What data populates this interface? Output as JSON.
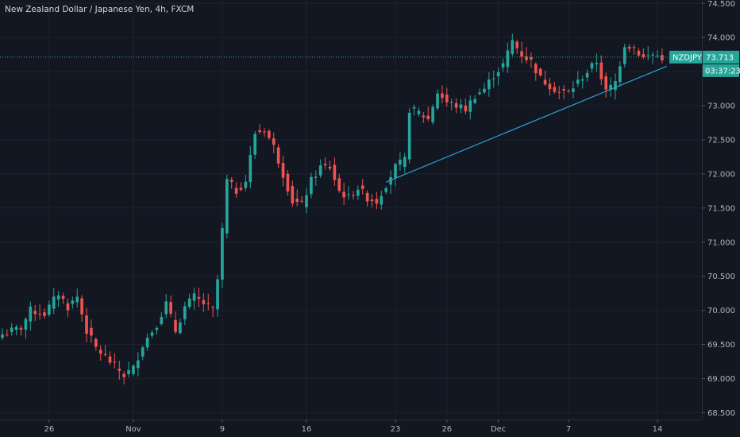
{
  "window": {
    "title": "New Zealand Dollar / Japanese Yen, 4h, FXCM"
  },
  "price_tag": {
    "symbol": "NZDJPY",
    "price": "73.713",
    "countdown": "03:37:23"
  },
  "colors": {
    "background": "#131722",
    "up": "#26a69a",
    "down": "#ef5350",
    "grid": "#1e222d",
    "trendline": "#2aa3d6",
    "axis_text": "#b2b5be"
  },
  "chart_data": {
    "type": "candlestick",
    "title": "New Zealand Dollar / Japanese Yen, 4h, FXCM",
    "ylim": [
      68.4,
      74.55
    ],
    "y_ticks": [
      "68.500",
      "69.000",
      "69.500",
      "70.000",
      "70.500",
      "71.000",
      "71.500",
      "72.000",
      "72.500",
      "73.000",
      "73.500",
      "74.000",
      "74.500"
    ],
    "x_ticks": [
      {
        "label": "26",
        "i": 10
      },
      {
        "label": "Nov",
        "i": 28
      },
      {
        "label": "9",
        "i": 47
      },
      {
        "label": "16",
        "i": 65
      },
      {
        "label": "23",
        "i": 84
      },
      {
        "label": "26",
        "i": 95
      },
      {
        "label": "Dec",
        "i": 106
      },
      {
        "label": "7",
        "i": 121
      },
      {
        "label": "14",
        "i": 140
      }
    ],
    "last_price": 73.713,
    "trendline": {
      "from": {
        "i": 82,
        "price": 71.88
      },
      "to": {
        "i": 142,
        "price": 73.58
      }
    },
    "anchors": [
      [
        0,
        69.65
      ],
      [
        4,
        69.75
      ],
      [
        6,
        70.0
      ],
      [
        9,
        69.95
      ],
      [
        12,
        70.25
      ],
      [
        14,
        70.05
      ],
      [
        16,
        70.2
      ],
      [
        18,
        69.7
      ],
      [
        20,
        69.45
      ],
      [
        23,
        69.25
      ],
      [
        26,
        69.05
      ],
      [
        28,
        69.15
      ],
      [
        30,
        69.5
      ],
      [
        33,
        69.8
      ],
      [
        35,
        70.1
      ],
      [
        37,
        69.7
      ],
      [
        39,
        70.05
      ],
      [
        41,
        70.2
      ],
      [
        43,
        70.1
      ],
      [
        45,
        70.0
      ],
      [
        46,
        70.45
      ],
      [
        48,
        71.9
      ],
      [
        50,
        71.75
      ],
      [
        52,
        71.9
      ],
      [
        54,
        72.6
      ],
      [
        56,
        72.65
      ],
      [
        58,
        72.4
      ],
      [
        60,
        72.0
      ],
      [
        62,
        71.6
      ],
      [
        64,
        71.55
      ],
      [
        66,
        71.9
      ],
      [
        68,
        72.1
      ],
      [
        70,
        72.1
      ],
      [
        72,
        71.75
      ],
      [
        74,
        71.65
      ],
      [
        76,
        71.8
      ],
      [
        78,
        71.65
      ],
      [
        80,
        71.6
      ],
      [
        82,
        71.85
      ],
      [
        84,
        72.1
      ],
      [
        86,
        72.2
      ],
      [
        87,
        72.95
      ],
      [
        89,
        72.9
      ],
      [
        91,
        72.8
      ],
      [
        93,
        73.2
      ],
      [
        95,
        73.05
      ],
      [
        97,
        73.0
      ],
      [
        99,
        72.95
      ],
      [
        101,
        73.15
      ],
      [
        103,
        73.25
      ],
      [
        105,
        73.45
      ],
      [
        107,
        73.6
      ],
      [
        109,
        73.95
      ],
      [
        111,
        73.75
      ],
      [
        113,
        73.65
      ],
      [
        115,
        73.4
      ],
      [
        117,
        73.3
      ],
      [
        119,
        73.2
      ],
      [
        121,
        73.2
      ],
      [
        123,
        73.35
      ],
      [
        125,
        73.5
      ],
      [
        127,
        73.65
      ],
      [
        129,
        73.2
      ],
      [
        131,
        73.35
      ],
      [
        133,
        73.9
      ],
      [
        135,
        73.85
      ],
      [
        137,
        73.7
      ],
      [
        139,
        73.75
      ],
      [
        141,
        73.71
      ]
    ]
  }
}
